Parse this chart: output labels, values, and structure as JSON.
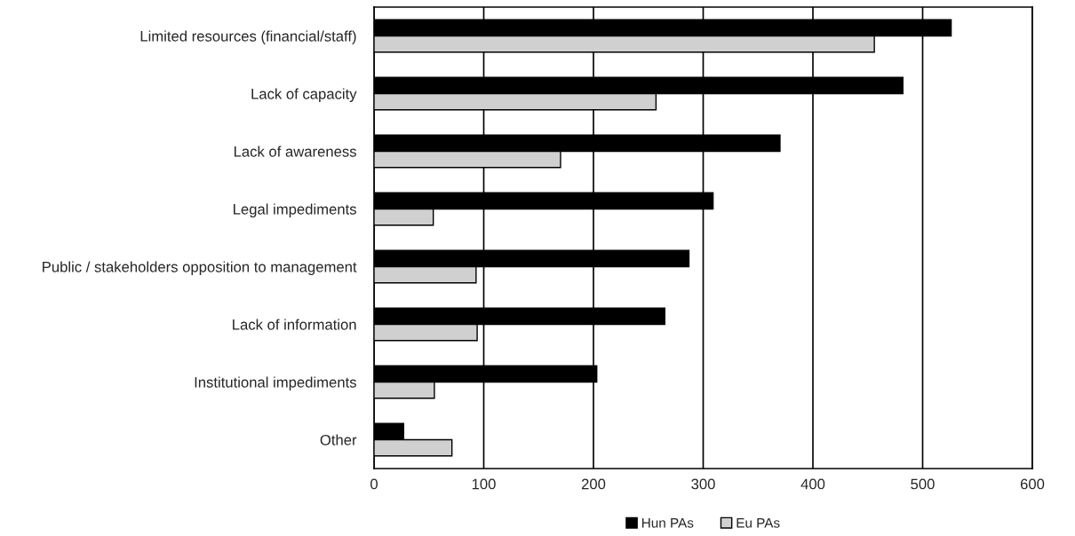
{
  "chart_data": {
    "type": "bar",
    "orientation": "horizontal",
    "categories": [
      "Limited resources (financial/staff)",
      "Lack of capacity",
      "Lack of awareness",
      "Legal impediments",
      "Public / stakeholders opposition to management",
      "Lack of information",
      "Institutional impediments",
      "Other"
    ],
    "series": [
      {
        "name": "Hun PAs",
        "color": "#000000",
        "values": [
          526,
          482,
          370,
          309,
          287,
          265,
          203,
          27
        ]
      },
      {
        "name": "Eu PAs",
        "color": "#d0d0d0",
        "values": [
          456,
          257,
          170,
          54,
          93,
          94,
          55,
          71
        ]
      }
    ],
    "xlim": [
      0,
      600
    ],
    "xticks": [
      0,
      100,
      200,
      300,
      400,
      500,
      600
    ],
    "grid": "x",
    "legend": "bottom"
  }
}
